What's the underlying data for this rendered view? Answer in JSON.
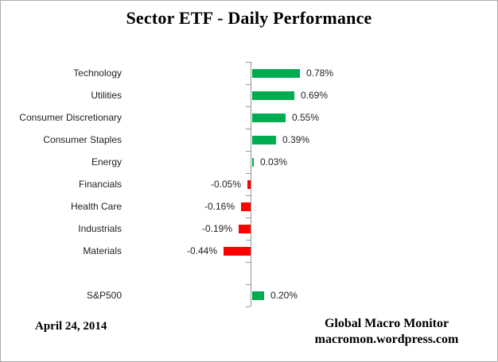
{
  "header": {
    "title": "Sector ETF - Daily Performance"
  },
  "footer": {
    "date": "April 24, 2014",
    "source_line1": "Global Macro Monitor",
    "source_line2": "macromon.wordpress.com"
  },
  "chart_data": {
    "type": "bar",
    "orientation": "horizontal",
    "title": "Sector ETF - Daily Performance",
    "categories": [
      "Technology",
      "Utilities",
      "Consumer Discretionary",
      "Consumer Staples",
      "Energy",
      "Financials",
      "Health Care",
      "Industrials",
      "Materials",
      "",
      "S&P500"
    ],
    "values": [
      0.78,
      0.69,
      0.55,
      0.39,
      0.03,
      -0.05,
      -0.16,
      -0.19,
      -0.44,
      null,
      0.2
    ],
    "value_labels": [
      "0.78%",
      "0.69%",
      "0.55%",
      "0.39%",
      "0.03%",
      "-0.05%",
      "-0.16%",
      "-0.19%",
      "-0.44%",
      "",
      "0.20%"
    ],
    "xlabel": "",
    "ylabel": "",
    "legend": "none",
    "grid": false,
    "positive_color": "#00AC4F",
    "negative_color": "#FF0000",
    "axis_color": "#969696",
    "label_color": "#1f1f1f"
  }
}
